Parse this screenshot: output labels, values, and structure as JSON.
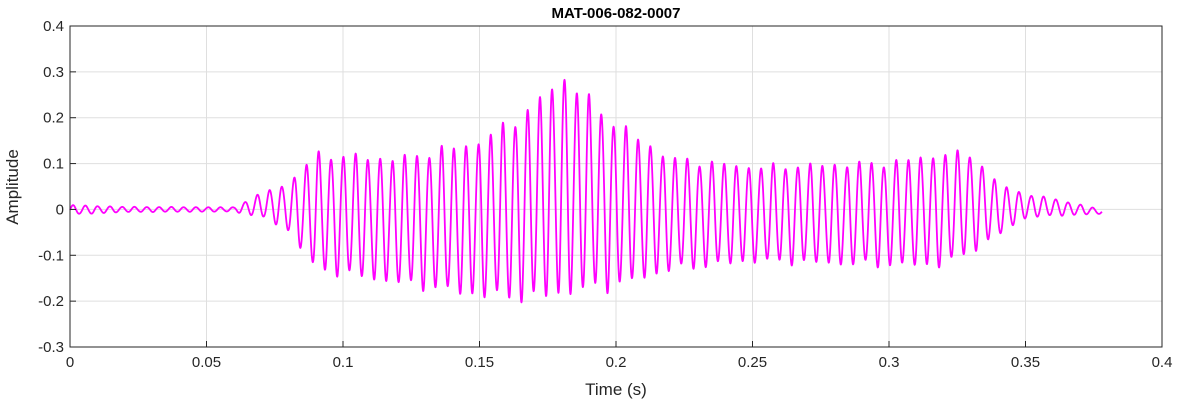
{
  "chart_data": {
    "type": "line",
    "title": "MAT-006-082-0007",
    "xlabel": "Time (s)",
    "ylabel": "Amplitude",
    "xlim": [
      0,
      0.4
    ],
    "ylim": [
      -0.3,
      0.4
    ],
    "xticks": [
      0,
      0.05,
      0.1,
      0.15,
      0.2,
      0.25,
      0.3,
      0.35,
      0.4
    ],
    "xtick_labels": [
      "0",
      "0.05",
      "0.1",
      "0.15",
      "0.2",
      "0.25",
      "0.3",
      "0.35",
      "0.4"
    ],
    "yticks": [
      -0.3,
      -0.2,
      -0.1,
      0,
      0.1,
      0.2,
      0.3,
      0.4
    ],
    "ytick_labels": [
      "-0.3",
      "-0.2",
      "-0.1",
      "0",
      "0.1",
      "0.2",
      "0.3",
      "0.4"
    ],
    "grid": true,
    "series": [
      {
        "color": "#ff00ff",
        "signal_end_s": 0.378,
        "envelope": {
          "t": [
            0,
            0.02,
            0.06,
            0.071,
            0.08,
            0.09,
            0.12,
            0.15,
            0.17,
            0.18,
            0.2,
            0.22,
            0.25,
            0.3,
            0.32,
            0.33,
            0.34,
            0.35,
            0.36,
            0.378
          ],
          "max": [
            0.01,
            0.006,
            0.005,
            0.04,
            0.06,
            0.13,
            0.12,
            0.16,
            0.24,
            0.31,
            0.2,
            0.12,
            0.1,
            0.11,
            0.13,
            0.13,
            0.06,
            0.035,
            0.025,
            0.0
          ],
          "min": [
            -0.012,
            -0.006,
            -0.005,
            -0.02,
            -0.05,
            -0.14,
            -0.17,
            -0.2,
            -0.21,
            -0.2,
            -0.18,
            -0.14,
            -0.12,
            -0.13,
            -0.13,
            -0.1,
            -0.06,
            -0.02,
            -0.015,
            -0.01
          ]
        },
        "period_s": 0.0045
      }
    ]
  }
}
